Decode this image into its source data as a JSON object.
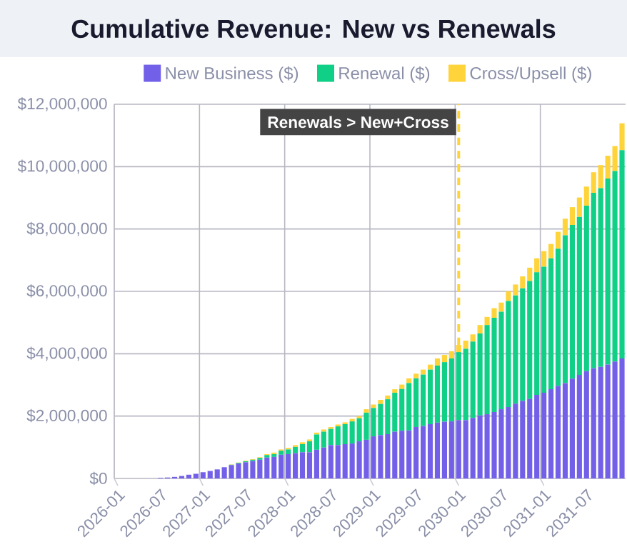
{
  "chart_data": {
    "type": "bar",
    "title": "Cumulative Revenue: New vs Renewals",
    "categories": [
      "2026-01",
      null,
      null,
      null,
      null,
      null,
      "2026-07",
      null,
      null,
      null,
      null,
      null,
      "2027-01",
      null,
      null,
      null,
      null,
      null,
      "2027-07",
      null,
      null,
      null,
      null,
      null,
      "2028-01",
      null,
      null,
      null,
      null,
      null,
      "2028-07",
      null,
      null,
      null,
      null,
      null,
      "2029-01",
      null,
      null,
      null,
      null,
      null,
      "2029-07",
      null,
      null,
      null,
      null,
      null,
      "2030-01",
      null,
      null,
      null,
      null,
      null,
      "2030-07",
      null,
      null,
      null,
      null,
      null,
      "2031-01",
      null,
      null,
      null,
      null,
      null,
      "2031-07",
      null,
      null,
      null,
      null,
      null
    ],
    "series": [
      {
        "name": "New Business ($)",
        "color": "#7360e8",
        "values": [
          0,
          0,
          0,
          0,
          null,
          null,
          20000,
          30000,
          50000,
          80000,
          120000,
          150000,
          200000,
          240000,
          290000,
          360000,
          430000,
          480000,
          520000,
          560000,
          600000,
          670000,
          690000,
          760000,
          780000,
          810000,
          840000,
          840000,
          920000,
          990000,
          1070000,
          1070000,
          1100000,
          1120000,
          1190000,
          1240000,
          1350000,
          1390000,
          1420000,
          1500000,
          1530000,
          1540000,
          1650000,
          1680000,
          1740000,
          1790000,
          1820000,
          1830000,
          1870000,
          1870000,
          1940000,
          2020000,
          2060000,
          2130000,
          2220000,
          2290000,
          2400000,
          2490000,
          2550000,
          2680000,
          2750000,
          2860000,
          2970000,
          3060000,
          3200000,
          3320000,
          3440000,
          3530000,
          3580000,
          3650000,
          3750000,
          3850000
        ]
      },
      {
        "name": "Renewal ($)",
        "color": "#10cf86",
        "values": [
          0,
          0,
          0,
          0,
          0,
          0,
          0,
          0,
          0,
          0,
          0,
          0,
          0,
          0,
          0,
          0,
          10000,
          20000,
          30000,
          40000,
          60000,
          80000,
          90000,
          130000,
          150000,
          200000,
          260000,
          350000,
          490000,
          510000,
          520000,
          600000,
          640000,
          710000,
          740000,
          870000,
          910000,
          1000000,
          1120000,
          1250000,
          1340000,
          1520000,
          1560000,
          1650000,
          1750000,
          1830000,
          1910000,
          2020000,
          2180000,
          2290000,
          2450000,
          2630000,
          2860000,
          3020000,
          3130000,
          3400000,
          3470000,
          3610000,
          3780000,
          3930000,
          4040000,
          4200000,
          4400000,
          4740000,
          4930000,
          5070000,
          5310000,
          5630000,
          5730000,
          5970000,
          6110000,
          6680000
        ]
      },
      {
        "name": "Cross/Upsell ($)",
        "color": "#ffd43b",
        "values": [
          0,
          0,
          0,
          0,
          0,
          0,
          0,
          0,
          0,
          0,
          0,
          0,
          0,
          0,
          null,
          null,
          10000,
          10000,
          20000,
          20000,
          20000,
          30000,
          50000,
          40000,
          50000,
          60000,
          60000,
          60000,
          60000,
          70000,
          60000,
          60000,
          60000,
          80000,
          70000,
          110000,
          110000,
          130000,
          120000,
          110000,
          140000,
          150000,
          150000,
          160000,
          160000,
          230000,
          230000,
          230000,
          230000,
          260000,
          230000,
          270000,
          260000,
          310000,
          290000,
          310000,
          350000,
          380000,
          430000,
          450000,
          500000,
          460000,
          540000,
          530000,
          570000,
          620000,
          610000,
          660000,
          740000,
          730000,
          800000,
          860000
        ]
      }
    ],
    "stacked": true,
    "ylim": [
      0,
      12000000
    ],
    "yticks": [
      {
        "value": 0,
        "label": "$0"
      },
      {
        "value": 2000000,
        "label": "$2,000,000"
      },
      {
        "value": 4000000,
        "label": "$4,000,000"
      },
      {
        "value": 6000000,
        "label": "$6,000,000"
      },
      {
        "value": 8000000,
        "label": "$8,000,000"
      },
      {
        "value": 10000000,
        "label": "$10,000,000"
      },
      {
        "value": 12000000,
        "label": "$12,000,000"
      }
    ],
    "grid": true,
    "legend": "top",
    "ref_lines": [
      {
        "axis": "x",
        "value": "2030-01",
        "label": "Renewals > New+Cross",
        "color": "#ffd43b",
        "line_style": "dashed"
      }
    ]
  }
}
